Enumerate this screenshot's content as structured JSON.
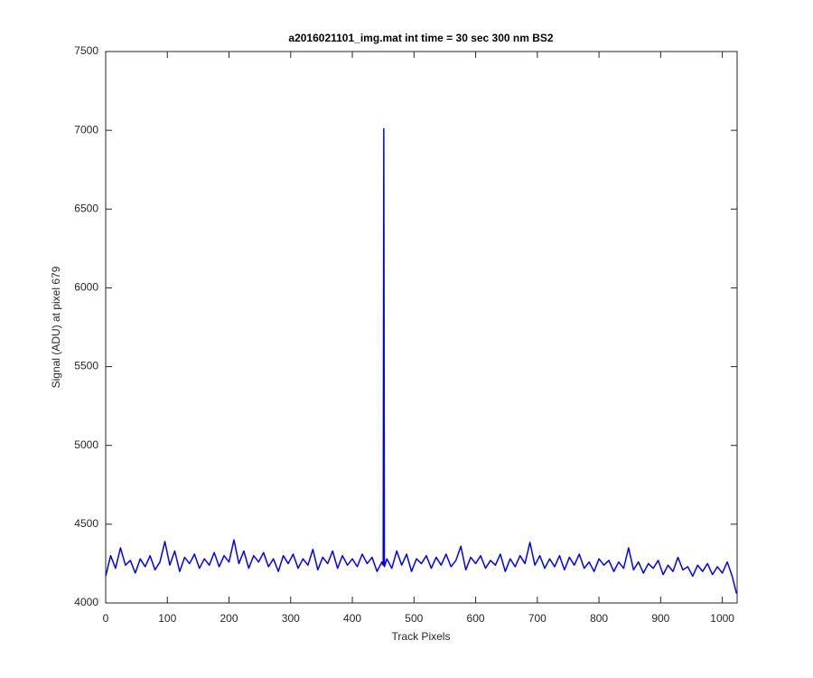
{
  "chart_data": {
    "type": "line",
    "title": "a2016021101_img.mat int time = 30 sec  300 nm BS2",
    "x_label": "Track Pixels",
    "y_label": "Signal (ADU) at pixel 679",
    "xlim": [
      0,
      1024
    ],
    "ylim": [
      4000,
      7500
    ],
    "xticks": [
      0,
      100,
      200,
      300,
      400,
      500,
      600,
      700,
      800,
      900,
      1000
    ],
    "yticks": [
      4000,
      4500,
      5000,
      5500,
      6000,
      6500,
      7000,
      7500
    ],
    "grid": false,
    "x": [
      0,
      8,
      16,
      24,
      32,
      40,
      48,
      56,
      64,
      72,
      80,
      88,
      96,
      104,
      112,
      120,
      128,
      136,
      144,
      152,
      160,
      168,
      176,
      184,
      192,
      200,
      208,
      216,
      224,
      232,
      240,
      248,
      256,
      264,
      272,
      280,
      288,
      296,
      304,
      312,
      320,
      328,
      336,
      344,
      352,
      360,
      368,
      376,
      384,
      392,
      400,
      408,
      416,
      424,
      432,
      440,
      448,
      450,
      451,
      452,
      456,
      464,
      472,
      480,
      488,
      496,
      504,
      512,
      520,
      528,
      536,
      544,
      552,
      560,
      568,
      576,
      584,
      592,
      600,
      608,
      616,
      624,
      632,
      640,
      648,
      656,
      664,
      672,
      680,
      688,
      696,
      704,
      712,
      720,
      728,
      736,
      744,
      752,
      760,
      768,
      776,
      784,
      792,
      800,
      808,
      816,
      824,
      832,
      840,
      848,
      856,
      864,
      872,
      880,
      888,
      896,
      904,
      912,
      920,
      928,
      936,
      944,
      952,
      960,
      968,
      976,
      984,
      992,
      1000,
      1008,
      1016,
      1023
    ],
    "series": [
      {
        "name": "Signal",
        "color": "#0000ff",
        "values": [
          4170,
          4300,
          4220,
          4350,
          4240,
          4270,
          4190,
          4280,
          4230,
          4300,
          4210,
          4260,
          4390,
          4240,
          4330,
          4200,
          4290,
          4250,
          4310,
          4220,
          4280,
          4240,
          4320,
          4230,
          4300,
          4260,
          4400,
          4250,
          4330,
          4220,
          4300,
          4260,
          4320,
          4230,
          4280,
          4200,
          4300,
          4250,
          4310,
          4220,
          4280,
          4240,
          4340,
          4210,
          4290,
          4250,
          4330,
          4220,
          4300,
          4240,
          4280,
          4230,
          4310,
          4250,
          4290,
          4200,
          4260,
          4240,
          7010,
          4230,
          4280,
          4220,
          4330,
          4240,
          4310,
          4200,
          4280,
          4250,
          4300,
          4220,
          4290,
          4240,
          4310,
          4230,
          4270,
          4360,
          4210,
          4290,
          4250,
          4300,
          4220,
          4270,
          4240,
          4310,
          4200,
          4280,
          4230,
          4300,
          4250,
          4385,
          4240,
          4300,
          4220,
          4280,
          4230,
          4300,
          4210,
          4290,
          4240,
          4310,
          4220,
          4260,
          4200,
          4280,
          4240,
          4270,
          4200,
          4260,
          4220,
          4350,
          4210,
          4260,
          4190,
          4250,
          4220,
          4270,
          4180,
          4240,
          4200,
          4290,
          4210,
          4230,
          4170,
          4240,
          4200,
          4250,
          4180,
          4230,
          4190,
          4260,
          4170,
          4060
        ]
      }
    ]
  }
}
